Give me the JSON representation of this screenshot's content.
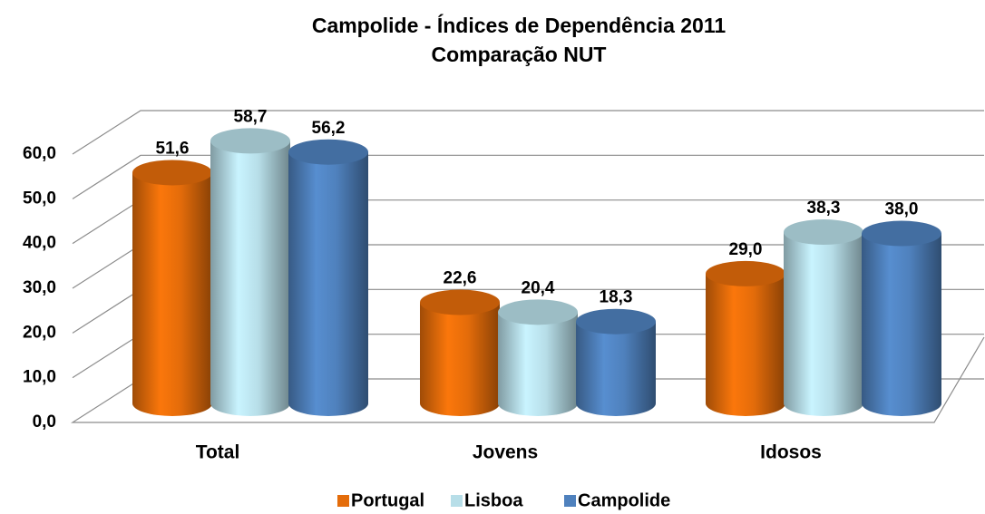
{
  "chart_data": {
    "type": "bar",
    "title": "Campolide - Índices de Dependência 2011",
    "subtitle": "Comparação NUT",
    "categories": [
      "Total",
      "Jovens",
      "Idosos"
    ],
    "series": [
      {
        "name": "Portugal",
        "color": "#e46c0a",
        "values": [
          51.6,
          22.6,
          29.0
        ],
        "value_labels": [
          "51,6",
          "22,6",
          "29,0"
        ]
      },
      {
        "name": "Lisboa",
        "color": "#b7dee8",
        "values": [
          58.7,
          20.4,
          38.3
        ],
        "value_labels": [
          "58,7",
          "20,4",
          "38,3"
        ]
      },
      {
        "name": "Campolide",
        "color": "#4f81bd",
        "values": [
          56.2,
          18.3,
          38.0
        ],
        "value_labels": [
          "56,2",
          "18,3",
          "38,0"
        ]
      }
    ],
    "ylim": [
      0,
      60
    ],
    "yticks": [
      {
        "value": 0,
        "label": "0,0"
      },
      {
        "value": 10,
        "label": "10,0"
      },
      {
        "value": 20,
        "label": "20,0"
      },
      {
        "value": 30,
        "label": "30,0"
      },
      {
        "value": 40,
        "label": "40,0"
      },
      {
        "value": 50,
        "label": "50,0"
      },
      {
        "value": 60,
        "label": "60,0"
      }
    ],
    "grid": true,
    "legend": "bottom"
  }
}
